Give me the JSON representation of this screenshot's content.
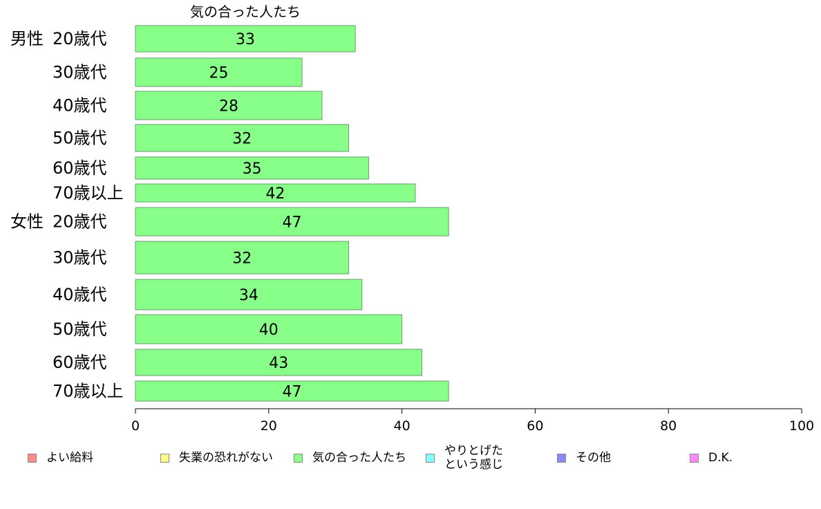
{
  "chart_data": {
    "type": "bar",
    "orientation": "horizontal",
    "title": "気の合った人たち",
    "groups": [
      {
        "label": "男性",
        "categories": [
          "20歳代",
          "30歳代",
          "40歳代",
          "50歳代",
          "60歳代",
          "70歳以上"
        ],
        "values": [
          33,
          25,
          28,
          32,
          35,
          42
        ]
      },
      {
        "label": "女性",
        "categories": [
          "20歳代",
          "30歳代",
          "40歳代",
          "50歳代",
          "60歳代",
          "70歳以上"
        ],
        "values": [
          47,
          32,
          34,
          40,
          43,
          47
        ]
      }
    ],
    "xlim": [
      0,
      100
    ],
    "xticks": [
      "0",
      "20",
      "40",
      "60",
      "80",
      "100"
    ],
    "bar_color": "#88ff88",
    "legend_position": "bottom",
    "legend": [
      {
        "label": "よい給料",
        "color": "#ff8888"
      },
      {
        "label": "失業の恐れがない",
        "color": "#ffff88"
      },
      {
        "label": "気の合った人たち",
        "color": "#88ff88"
      },
      {
        "label": "やりとげた\nという感じ",
        "color": "#88ffff"
      },
      {
        "label": "その他",
        "color": "#8888ff"
      },
      {
        "label": "D.K.",
        "color": "#ff88ff"
      }
    ]
  }
}
